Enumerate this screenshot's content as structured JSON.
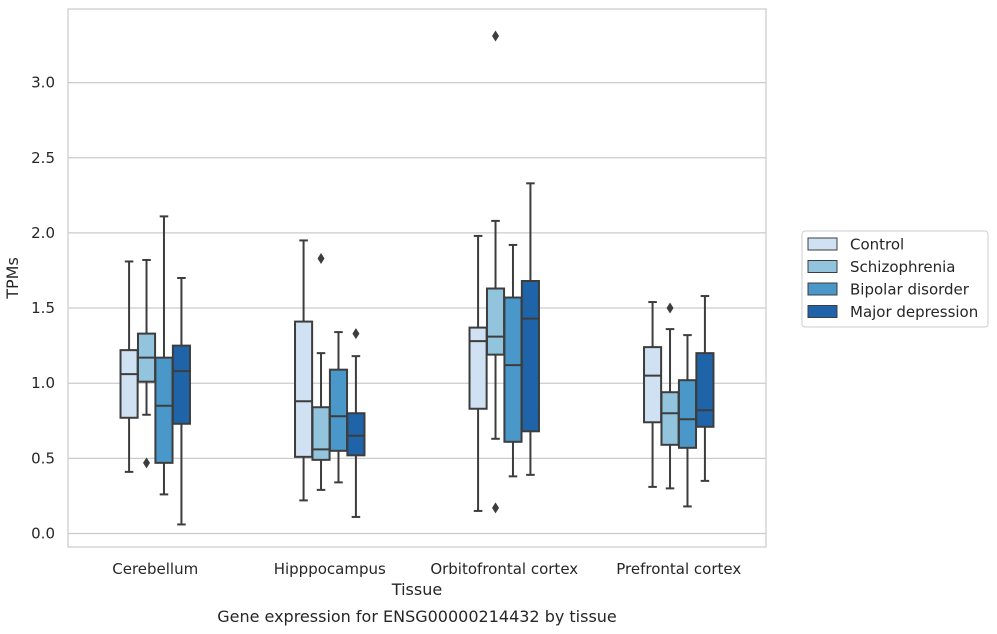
{
  "chart_data": {
    "type": "box",
    "title": "",
    "caption": "Gene expression for ENSG00000214432 by tissue",
    "xlabel": "Tissue",
    "ylabel": "TPMs",
    "ylim": [
      -0.09,
      3.49
    ],
    "yticks": [
      "0.0",
      "0.5",
      "1.0",
      "1.5",
      "2.0",
      "2.5",
      "3.0"
    ],
    "grid": "horizontal",
    "legend_position": "right",
    "categories": [
      "Cerebellum",
      "Hipppocampus",
      "Orbitofrontal cortex",
      "Prefrontal cortex"
    ],
    "series": [
      {
        "name": "Control",
        "color": "#cfe1f2",
        "boxes": [
          {
            "min": 0.41,
            "q1": 0.77,
            "median": 1.06,
            "q3": 1.22,
            "max": 1.81,
            "outliers": []
          },
          {
            "min": 0.22,
            "q1": 0.51,
            "median": 0.88,
            "q3": 1.41,
            "max": 1.95,
            "outliers": []
          },
          {
            "min": 0.15,
            "q1": 0.83,
            "median": 1.28,
            "q3": 1.37,
            "max": 1.98,
            "outliers": []
          },
          {
            "min": 0.31,
            "q1": 0.74,
            "median": 1.05,
            "q3": 1.24,
            "max": 1.54,
            "outliers": []
          }
        ]
      },
      {
        "name": "Schizophrenia",
        "color": "#93c4de",
        "boxes": [
          {
            "min": 0.79,
            "q1": 1.01,
            "median": 1.17,
            "q3": 1.33,
            "max": 1.82,
            "outliers": [
              0.47
            ]
          },
          {
            "min": 0.29,
            "q1": 0.49,
            "median": 0.56,
            "q3": 0.84,
            "max": 1.2,
            "outliers": [
              1.83
            ]
          },
          {
            "min": 0.63,
            "q1": 1.19,
            "median": 1.31,
            "q3": 1.63,
            "max": 2.08,
            "outliers": [
              3.31,
              0.17
            ]
          },
          {
            "min": 0.3,
            "q1": 0.59,
            "median": 0.8,
            "q3": 0.94,
            "max": 1.36,
            "outliers": [
              1.5
            ]
          }
        ]
      },
      {
        "name": "Bipolar disorder",
        "color": "#4a98c9",
        "boxes": [
          {
            "min": 0.26,
            "q1": 0.47,
            "median": 0.85,
            "q3": 1.17,
            "max": 2.11,
            "outliers": []
          },
          {
            "min": 0.34,
            "q1": 0.55,
            "median": 0.78,
            "q3": 1.09,
            "max": 1.34,
            "outliers": []
          },
          {
            "min": 0.38,
            "q1": 0.61,
            "median": 1.12,
            "q3": 1.57,
            "max": 1.92,
            "outliers": []
          },
          {
            "min": 0.18,
            "q1": 0.57,
            "median": 0.76,
            "q3": 1.02,
            "max": 1.32,
            "outliers": []
          }
        ]
      },
      {
        "name": "Major depression",
        "color": "#1f64a8",
        "boxes": [
          {
            "min": 0.06,
            "q1": 0.73,
            "median": 1.08,
            "q3": 1.25,
            "max": 1.7,
            "outliers": []
          },
          {
            "min": 0.11,
            "q1": 0.52,
            "median": 0.65,
            "q3": 0.8,
            "max": 1.18,
            "outliers": [
              1.33
            ]
          },
          {
            "min": 0.39,
            "q1": 0.68,
            "median": 1.43,
            "q3": 1.68,
            "max": 2.33,
            "outliers": []
          },
          {
            "min": 0.35,
            "q1": 0.71,
            "median": 0.82,
            "q3": 1.2,
            "max": 1.58,
            "outliers": []
          }
        ]
      }
    ]
  }
}
